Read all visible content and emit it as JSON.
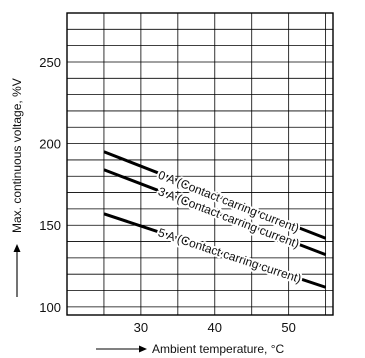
{
  "chart_data": {
    "type": "line",
    "xlabel": "Ambient temperature, °C",
    "ylabel": "Max. continuous voltage, %V",
    "xlim": [
      20,
      56
    ],
    "ylim": [
      95,
      280
    ],
    "x_ticks": [
      30,
      40,
      50
    ],
    "y_ticks": [
      100,
      150,
      200,
      250
    ],
    "grid": true,
    "series": [
      {
        "name": "0 A (Contact carring current)",
        "x": [
          25,
          55
        ],
        "y": [
          195,
          142
        ]
      },
      {
        "name": "3 A (Contact carring current)",
        "x": [
          25,
          55
        ],
        "y": [
          184,
          132
        ]
      },
      {
        "name": "5 A (Contact carring current)",
        "x": [
          25,
          55
        ],
        "y": [
          157,
          112
        ]
      }
    ]
  }
}
